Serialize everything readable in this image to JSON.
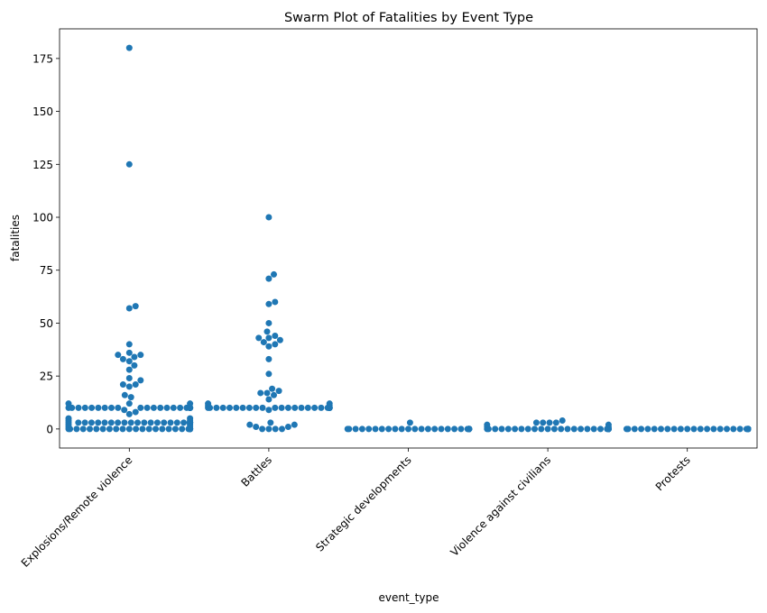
{
  "chart_data": {
    "type": "scatter",
    "title": "Swarm Plot of Fatalities by Event Type",
    "xlabel": "event_type",
    "ylabel": "fatalities",
    "ylim": [
      -9,
      189
    ],
    "yticks": [
      0,
      25,
      50,
      75,
      100,
      125,
      150,
      175
    ],
    "grid": false,
    "point_color": "#1f77b4",
    "categories": [
      "Explosions/Remote violence",
      "Battles",
      "Strategic developments",
      "Violence against civilians",
      "Protests"
    ],
    "series": [
      {
        "category": "Explosions/Remote violence",
        "values": [
          180,
          125,
          58,
          57,
          40,
          36,
          35,
          35,
          34,
          33,
          32,
          30,
          28,
          24,
          23,
          21,
          21,
          20,
          16,
          15,
          12,
          12,
          12,
          10,
          10,
          10,
          10,
          10,
          10,
          10,
          10,
          10,
          10,
          10,
          10,
          10,
          10,
          10,
          10,
          10,
          10,
          10,
          10,
          10,
          10,
          10,
          10,
          10,
          10,
          10,
          10,
          10,
          10,
          9,
          8,
          7,
          5,
          5,
          4,
          4,
          3,
          3,
          3,
          3,
          3,
          3,
          3,
          3,
          3,
          3,
          3,
          3,
          3,
          3,
          3,
          3,
          3,
          3,
          3,
          3,
          3,
          3,
          3,
          3,
          3,
          3,
          3,
          3,
          3,
          3,
          2,
          2,
          1,
          1,
          0,
          0,
          0,
          0,
          0,
          0,
          0,
          0,
          0,
          0,
          0,
          0,
          0,
          0,
          0,
          0,
          0,
          0,
          0,
          0,
          0,
          0,
          0,
          0,
          0,
          0,
          0,
          0,
          0,
          0
        ]
      },
      {
        "category": "Battles",
        "values": [
          100,
          73,
          71,
          60,
          59,
          50,
          46,
          44,
          43,
          43,
          42,
          41,
          40,
          39,
          33,
          26,
          19,
          18,
          17,
          17,
          16,
          14,
          12,
          12,
          11,
          11,
          10,
          10,
          10,
          10,
          10,
          10,
          10,
          10,
          10,
          10,
          10,
          10,
          10,
          10,
          10,
          10,
          10,
          10,
          10,
          10,
          10,
          10,
          10,
          10,
          10,
          9,
          3,
          2,
          2,
          1,
          1,
          0,
          0,
          0,
          0
        ]
      },
      {
        "category": "Strategic developments",
        "values": [
          3,
          0,
          0,
          0,
          0,
          0,
          0,
          0,
          0,
          0,
          0,
          0,
          0,
          0,
          0,
          0,
          0,
          0,
          0,
          0,
          0,
          0,
          0,
          0,
          0,
          0,
          0,
          0,
          0,
          0,
          0,
          0,
          0,
          0,
          0,
          0,
          0
        ]
      },
      {
        "category": "Violence against civilians",
        "values": [
          4,
          3,
          3,
          3,
          3,
          2,
          2,
          1,
          1,
          0,
          0,
          0,
          0,
          0,
          0,
          0,
          0,
          0,
          0,
          0,
          0,
          0,
          0,
          0,
          0,
          0,
          0,
          0,
          0,
          0,
          0,
          0,
          0,
          0,
          0,
          0,
          0
        ]
      },
      {
        "category": "Protests",
        "values": [
          0,
          0,
          0,
          0,
          0,
          0,
          0,
          0,
          0,
          0,
          0,
          0,
          0,
          0,
          0,
          0,
          0,
          0,
          0,
          0,
          0,
          0,
          0,
          0,
          0,
          0,
          0,
          0,
          0,
          0,
          0,
          0,
          0,
          0,
          0,
          0,
          0
        ]
      }
    ]
  }
}
